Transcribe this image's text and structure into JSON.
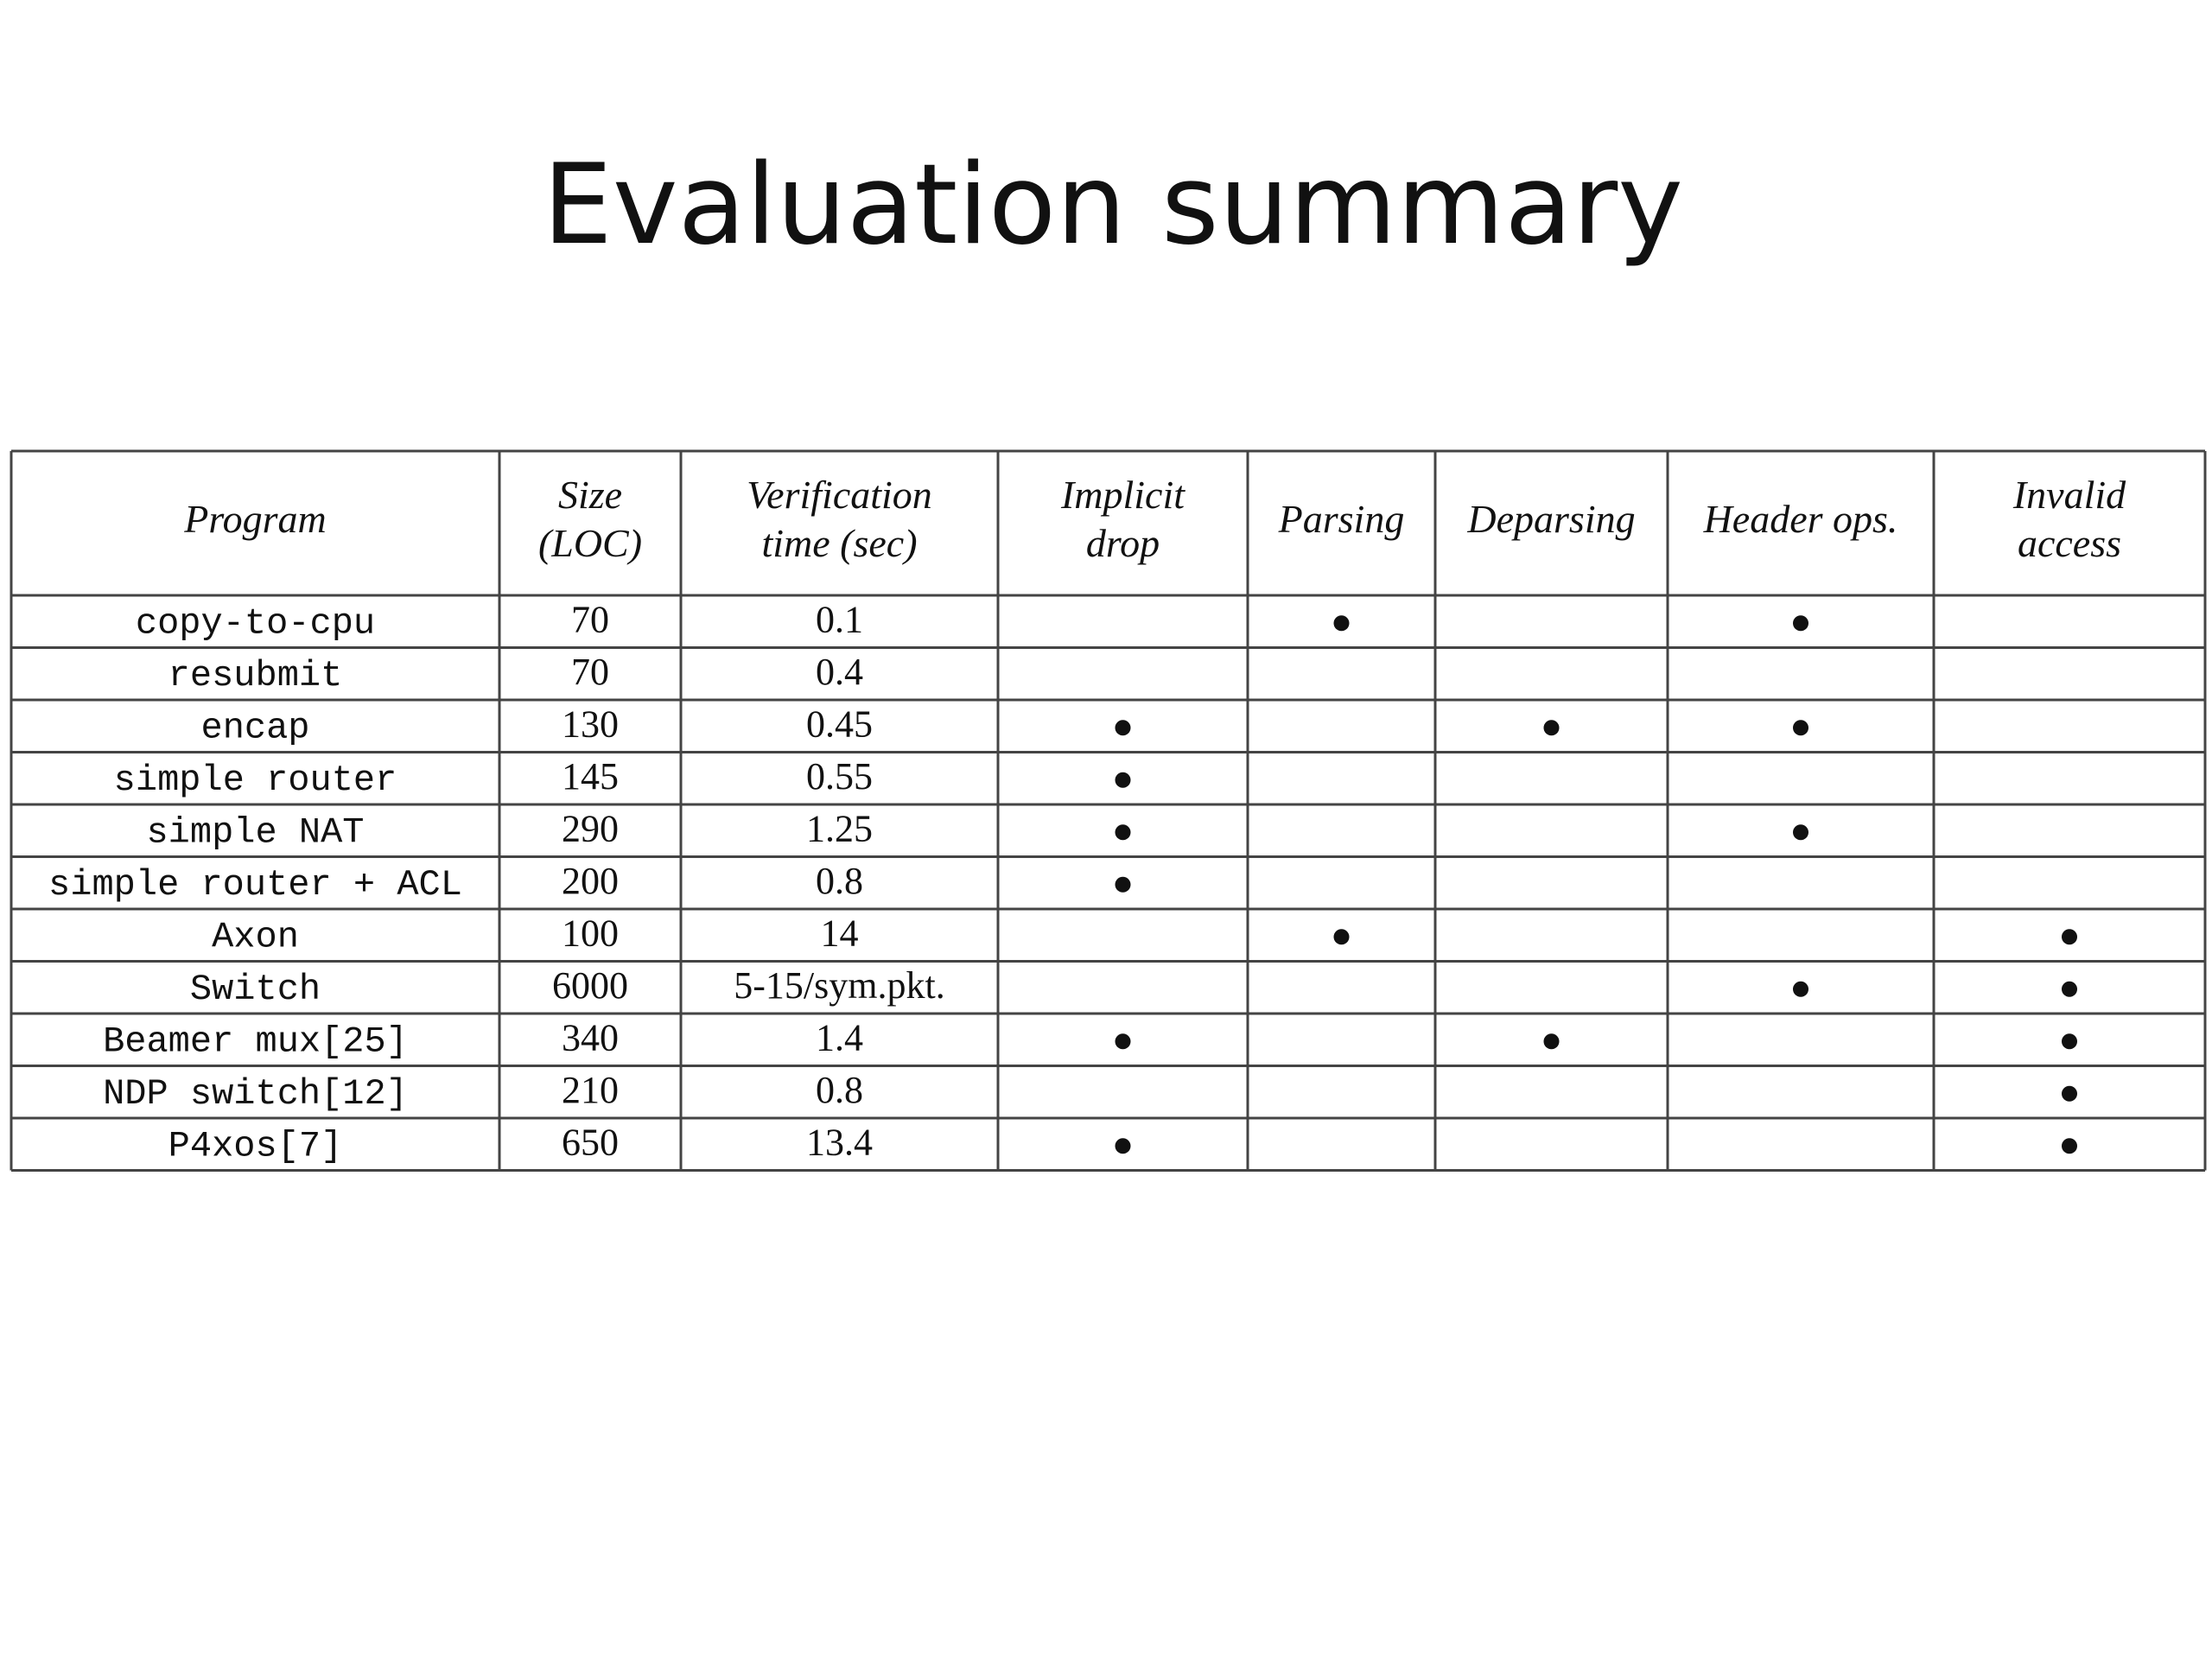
{
  "title": "Evaluation summary",
  "table": {
    "header": [
      [
        "Program"
      ],
      [
        "Size",
        "(LOC)"
      ],
      [
        "Verification",
        "time (sec)"
      ],
      [
        "Implicit",
        "drop"
      ],
      [
        "Parsing"
      ],
      [
        "Deparsing"
      ],
      [
        "Header ops."
      ],
      [
        "Invalid",
        "access"
      ]
    ],
    "rows": [
      {
        "program": "copy-to-cpu",
        "size": 70,
        "time": 0.1,
        "checks": [
          false,
          true,
          false,
          true,
          false
        ]
      },
      {
        "program": "resubmit",
        "size": 70,
        "time": 0.4,
        "checks": [
          false,
          false,
          false,
          false,
          false
        ]
      },
      {
        "program": "encap",
        "size": 130,
        "time": 0.45,
        "checks": [
          true,
          false,
          true,
          true,
          false
        ]
      },
      {
        "program": "simple router",
        "size": 145,
        "time": 0.55,
        "checks": [
          true,
          false,
          false,
          false,
          false
        ]
      },
      {
        "program": "simple NAT",
        "size": 290,
        "time": 1.25,
        "checks": [
          true,
          false,
          false,
          true,
          false
        ]
      },
      {
        "program": "simple router + ACL",
        "size": 200,
        "time": 0.8,
        "checks": [
          true,
          false,
          false,
          false,
          false
        ]
      },
      {
        "program": "Axon",
        "size": 100,
        "time": 14,
        "checks": [
          false,
          true,
          false,
          false,
          true
        ]
      },
      {
        "program": "Switch",
        "size": 6000,
        "time": "5-15/sym.pkt.",
        "checks": [
          false,
          false,
          false,
          true,
          true
        ]
      },
      {
        "program": "Beamer mux[25]",
        "size": 340,
        "time": 1.4,
        "checks": [
          true,
          false,
          true,
          false,
          true
        ]
      },
      {
        "program": "NDP switch[12]",
        "size": 210,
        "time": 0.8,
        "checks": [
          false,
          false,
          false,
          false,
          true
        ]
      },
      {
        "program": "P4xos[7]",
        "size": 650,
        "time": 13.4,
        "checks": [
          true,
          false,
          false,
          false,
          true
        ]
      }
    ]
  }
}
